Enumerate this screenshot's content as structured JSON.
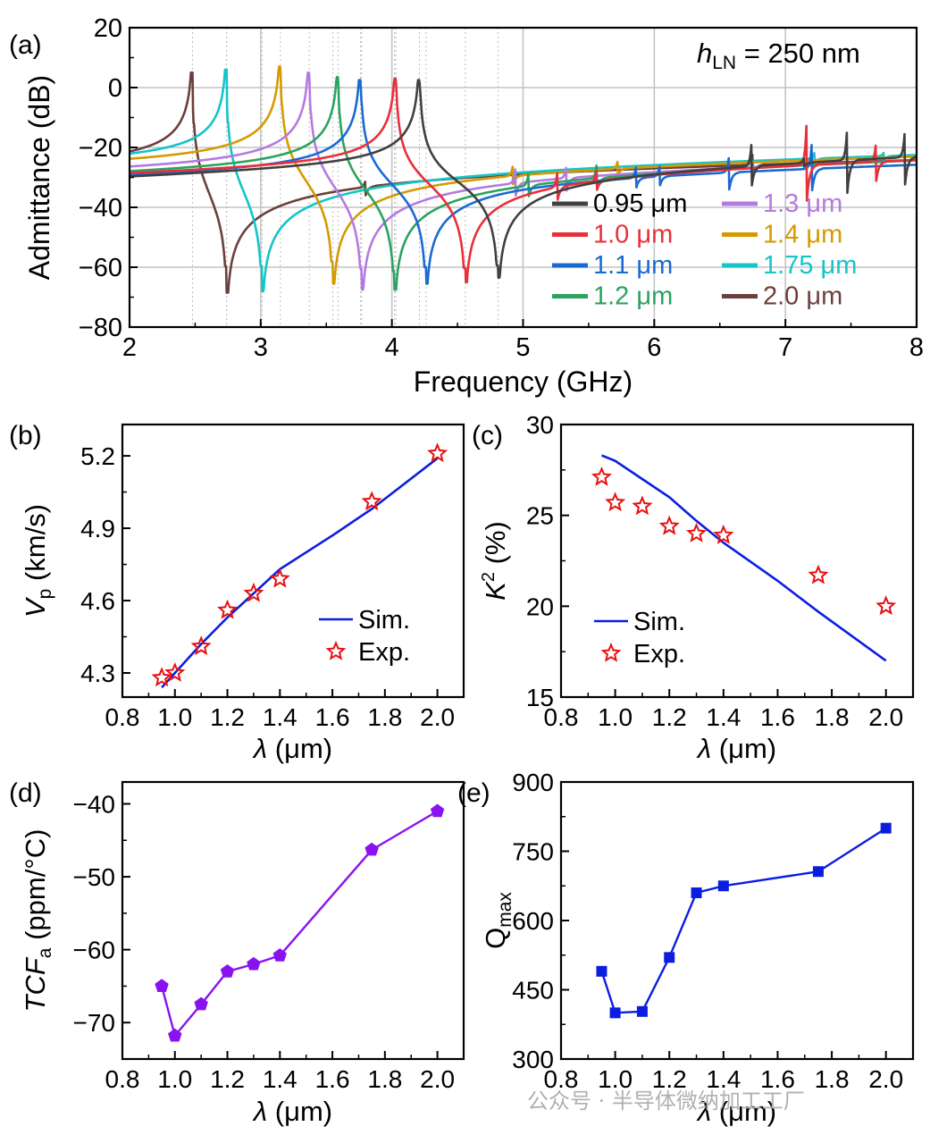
{
  "watermark": "公众号 · 半导体微纳加工工厂",
  "chart_data": [
    {
      "id": "a",
      "panel_label": "(a)",
      "type": "line",
      "title": "",
      "annotation": {
        "italic": "h",
        "sub": "LN",
        "text": " = 250 nm"
      },
      "xlabel": "Frequency (GHz)",
      "ylabel": "Admittance (dB)",
      "xlim": [
        2,
        8
      ],
      "ylim": [
        -80,
        20
      ],
      "xticks": [
        2,
        3,
        4,
        5,
        6,
        7,
        8
      ],
      "yticks": [
        -80,
        -60,
        -40,
        -20,
        0,
        20
      ],
      "ytick_labels": [
        "−80",
        "−60",
        "−40",
        "−20",
        "0",
        "20"
      ],
      "grid": true,
      "legend_position": "bottom-right",
      "series": [
        {
          "name": "0.95 μm",
          "color": "#404040",
          "fr": 4.21,
          "peak": 2.5,
          "fa": 4.81,
          "dip": -63.5,
          "base0": -31,
          "base1": -21,
          "spurs": [
            [
              6.74,
              -16
            ],
            [
              7.14,
              -21
            ],
            [
              7.47,
              -11
            ],
            [
              7.91,
              -12
            ]
          ]
        },
        {
          "name": "1.0 μm",
          "color": "#e8303a",
          "fr": 4.03,
          "peak": 3,
          "fa": 4.56,
          "dip": -65,
          "base0": -30,
          "base1": -22,
          "spurs": [
            [
              5.26,
              -21
            ],
            [
              5.56,
              -22
            ],
            [
              7.16,
              -10
            ],
            [
              7.69,
              -16
            ]
          ]
        },
        {
          "name": "1.1 μm",
          "color": "#1b6ad1",
          "fr": 3.76,
          "peak": 2.5,
          "fa": 4.26,
          "dip": -65.5,
          "base0": -31,
          "base1": -24,
          "spurs": [
            [
              5.86,
              -23
            ],
            [
              6.04,
              -23
            ],
            [
              6.57,
              -20
            ],
            [
              7.2,
              -17
            ]
          ]
        },
        {
          "name": "1.2 μm",
          "color": "#2ba35e",
          "fr": 3.59,
          "peak": 3.5,
          "fa": 4.02,
          "dip": -67.5,
          "base0": -30,
          "base1": -22,
          "spurs": [
            [
              5.04,
              -22
            ],
            [
              5.56,
              -21
            ]
          ]
        },
        {
          "name": "1.3 μm",
          "color": "#b57ae0",
          "fr": 3.37,
          "peak": 5,
          "fa": 3.77,
          "dip": -67.5,
          "base0": -29,
          "base1": -22,
          "spurs": [
            [
              4.94,
              -21
            ],
            [
              5.33,
              -21
            ]
          ]
        },
        {
          "name": "1.4 μm",
          "color": "#d49a00",
          "fr": 3.15,
          "peak": 7,
          "fa": 3.55,
          "dip": -65.5,
          "base0": -27,
          "base1": -21,
          "spurs": [
            [
              4.92,
              -21
            ],
            [
              5.72,
              -21
            ]
          ]
        },
        {
          "name": "1.75 μm",
          "color": "#14c4c8",
          "fr": 2.74,
          "peak": 6,
          "fa": 3.01,
          "dip": -68,
          "base0": -26,
          "base1": -20,
          "spurs": [
            [
              7.22,
              -19
            ],
            [
              7.75,
              -19
            ]
          ]
        },
        {
          "name": "2.0 μm",
          "color": "#6b3f3b",
          "fr": 2.48,
          "peak": 5,
          "fa": 2.74,
          "dip": -68.5,
          "base0": -27,
          "base1": -22,
          "spurs": [
            [
              3.8,
              -23
            ],
            [
              6.75,
              -19
            ]
          ]
        }
      ]
    },
    {
      "id": "b",
      "panel_label": "(b)",
      "type": "line+scatter",
      "xlabel_italic": "λ",
      "xlabel": " (μm)",
      "ylabel_italic": "V",
      "ylabel_sub": "p",
      "ylabel": " (km/s)",
      "xlim": [
        0.8,
        2.1
      ],
      "ylim": [
        4.2,
        5.33
      ],
      "xticks": [
        0.8,
        1.0,
        1.2,
        1.4,
        1.6,
        1.8,
        2.0
      ],
      "xtick_labels": [
        "0.8",
        "1.0",
        "1.2",
        "1.4",
        "1.6",
        "1.8",
        "2.0"
      ],
      "yticks": [
        4.3,
        4.6,
        4.9,
        5.2
      ],
      "ytick_labels": [
        "4.3",
        "4.6",
        "4.9",
        "5.2"
      ],
      "legend_position": "bottom-right",
      "sim": {
        "name": "Sim.",
        "color": "#0b1ee0",
        "x": [
          0.95,
          1.0,
          1.1,
          1.2,
          1.3,
          1.4,
          1.6,
          1.75,
          2.0
        ],
        "y": [
          4.24,
          4.3,
          4.42,
          4.53,
          4.63,
          4.73,
          4.87,
          4.98,
          5.19
        ]
      },
      "exp": {
        "name": "Exp.",
        "color": "#e81010",
        "x": [
          0.95,
          1.0,
          1.1,
          1.2,
          1.3,
          1.4,
          1.75,
          2.0
        ],
        "y": [
          4.28,
          4.3,
          4.41,
          4.56,
          4.63,
          4.69,
          5.01,
          5.21
        ]
      }
    },
    {
      "id": "c",
      "panel_label": "(c)",
      "type": "line+scatter",
      "xlabel_italic": "λ",
      "xlabel": " (μm)",
      "ylabel_italic": "K",
      "ylabel_sup": "2",
      "ylabel": " (%)",
      "xlim": [
        0.8,
        2.1
      ],
      "ylim": [
        15,
        30
      ],
      "xticks": [
        0.8,
        1.0,
        1.2,
        1.4,
        1.6,
        1.8,
        2.0
      ],
      "xtick_labels": [
        "0.8",
        "1.0",
        "1.2",
        "1.4",
        "1.6",
        "1.8",
        "2.0"
      ],
      "yticks": [
        15,
        20,
        25,
        30
      ],
      "ytick_labels": [
        "15",
        "20",
        "25",
        "30"
      ],
      "legend_position": "bottom-left",
      "sim": {
        "name": "Sim.",
        "color": "#0b1ee0",
        "x": [
          0.95,
          1.0,
          1.1,
          1.2,
          1.3,
          1.4,
          1.6,
          1.75,
          2.0
        ],
        "y": [
          28.3,
          28.0,
          27.0,
          26.0,
          24.7,
          23.5,
          21.4,
          19.7,
          17.0
        ]
      },
      "exp": {
        "name": "Exp.",
        "color": "#e81010",
        "x": [
          0.95,
          1.0,
          1.1,
          1.2,
          1.3,
          1.4,
          1.75,
          2.0
        ],
        "y": [
          27.1,
          25.7,
          25.5,
          24.4,
          24.0,
          23.9,
          21.7,
          20.0
        ]
      }
    },
    {
      "id": "d",
      "panel_label": "(d)",
      "type": "line",
      "xlabel_italic": "λ",
      "xlabel": " (μm)",
      "ylabel_italic": "TCF",
      "ylabel_sub": "a",
      "ylabel": " (ppm/°C)",
      "xlim": [
        0.8,
        2.1
      ],
      "ylim": [
        -75,
        -37
      ],
      "xticks": [
        0.8,
        1.0,
        1.2,
        1.4,
        1.6,
        1.8,
        2.0
      ],
      "xtick_labels": [
        "0.8",
        "1.0",
        "1.2",
        "1.4",
        "1.6",
        "1.8",
        "2.0"
      ],
      "yticks": [
        -70,
        -60,
        -50,
        -40
      ],
      "ytick_labels": [
        "−70",
        "−60",
        "−50",
        "−40"
      ],
      "color": "#8a12f0",
      "marker": "pentagon",
      "x": [
        0.95,
        1.0,
        1.1,
        1.2,
        1.3,
        1.4,
        1.75,
        2.0
      ],
      "y": [
        -65.0,
        -71.8,
        -67.5,
        -63.0,
        -62.0,
        -60.8,
        -46.3,
        -41.0
      ]
    },
    {
      "id": "e",
      "panel_label": "(e)",
      "type": "line",
      "xlabel_italic": "λ",
      "xlabel": " (μm)",
      "ylabel": "Q",
      "ylabel_sub": "max",
      "xlim": [
        0.8,
        2.1
      ],
      "ylim": [
        300,
        900
      ],
      "xticks": [
        0.8,
        1.0,
        1.2,
        1.4,
        1.6,
        1.8,
        2.0
      ],
      "xtick_labels": [
        "0.8",
        "1.0",
        "1.2",
        "1.4",
        "1.6",
        "1.8",
        "2.0"
      ],
      "yticks": [
        300,
        450,
        600,
        750,
        900
      ],
      "ytick_labels": [
        "300",
        "450",
        "600",
        "750",
        "900"
      ],
      "color": "#0b1ee0",
      "marker": "square",
      "x": [
        0.95,
        1.0,
        1.1,
        1.2,
        1.3,
        1.4,
        1.75,
        2.0
      ],
      "y": [
        490,
        400,
        403,
        520,
        660,
        675,
        706,
        800
      ]
    }
  ]
}
